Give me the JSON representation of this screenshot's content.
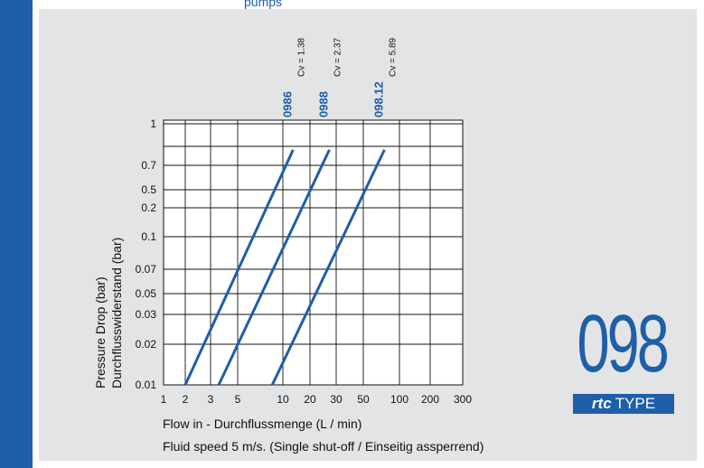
{
  "page": {
    "top_link": "pumps"
  },
  "chart_data": {
    "type": "line",
    "title": "",
    "xlabel": "Flow in - Durchflussmenge (L / min)",
    "note": "Fluid speed 5 m/s. (Single shut-off / Einseitig assperrend)",
    "ylabel_lines": [
      "Pressure Drop (bar)",
      "Durchflusswiderstand (bar)"
    ],
    "x_ticks": [
      "1",
      "2",
      "3",
      "5",
      "10",
      "20",
      "30",
      "50",
      "100",
      "200",
      "300"
    ],
    "y_ticks": [
      "0.01",
      "0.02",
      "0.03",
      "0.05",
      "0.07",
      "0.1",
      "0.2",
      "0.5",
      "0.7",
      "1"
    ],
    "series": [
      {
        "name": "0986",
        "cv": "Cv = 1.38",
        "points": [
          [
            2,
            0.01
          ],
          [
            13,
            0.8
          ]
        ]
      },
      {
        "name": "0988",
        "cv": "Cv = 2.37",
        "points": [
          [
            3.5,
            0.01
          ],
          [
            27,
            0.8
          ]
        ]
      },
      {
        "name": "098.12",
        "cv": "Cv = 5.89",
        "points": [
          [
            8.5,
            0.01
          ],
          [
            75,
            0.8
          ]
        ]
      }
    ],
    "line_color": "#1f5ea8",
    "grid": true
  },
  "logo": {
    "number": "098",
    "brand": "rtc",
    "type": "TYPE"
  }
}
